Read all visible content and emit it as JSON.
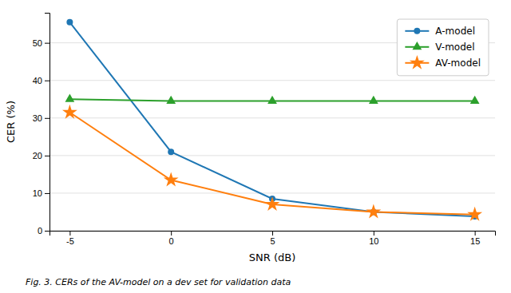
{
  "chart_data": {
    "type": "line",
    "x": [
      -5,
      0,
      5,
      10,
      15
    ],
    "series": [
      {
        "name": "A-model",
        "color": "#1f77b4",
        "marker": "circle",
        "values": [
          55.5,
          21.0,
          8.5,
          5.0,
          3.8
        ]
      },
      {
        "name": "V-model",
        "color": "#2ca02c",
        "marker": "triangle-up",
        "values": [
          35.0,
          34.5,
          34.5,
          34.5,
          34.5
        ]
      },
      {
        "name": "AV-model",
        "color": "#ff7f0e",
        "marker": "star",
        "values": [
          31.5,
          13.5,
          7.0,
          5.0,
          4.3
        ]
      }
    ],
    "xlabel": "SNR (dB)",
    "ylabel": "CER (%)",
    "xlim": [
      -6,
      16
    ],
    "xticks": [
      -5,
      0,
      5,
      10,
      15
    ],
    "ylim": [
      0,
      58
    ],
    "yticks": [
      0,
      10,
      20,
      30,
      40,
      50
    ],
    "grid": true,
    "legend": "upper right",
    "caption": "Fig. 3. CERs of the AV-model on a dev set for validation data"
  }
}
